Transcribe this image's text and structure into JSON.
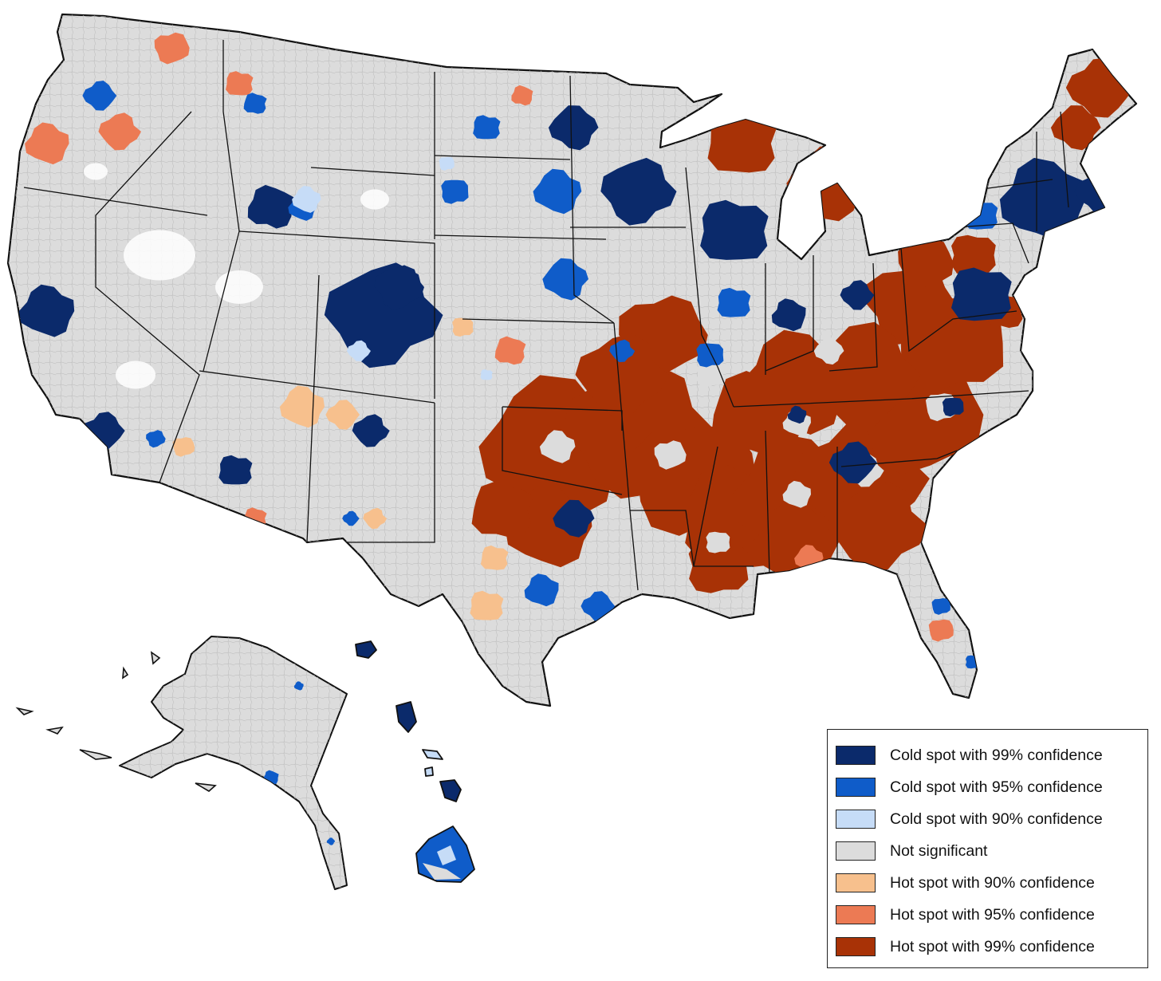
{
  "map": {
    "region": "United States (counties), incl. Alaska and Hawaii",
    "legend": {
      "items": [
        {
          "label": "Cold spot with 99% confidence",
          "color": "#0b2a6b",
          "key": "cold99"
        },
        {
          "label": "Cold spot with 95% confidence",
          "color": "#0f5cc9",
          "key": "cold95"
        },
        {
          "label": "Cold spot with 90% confidence",
          "color": "#c6dcf7",
          "key": "cold90"
        },
        {
          "label": "Not significant",
          "color": "#dcdcdc",
          "key": "ns"
        },
        {
          "label": "Hot spot with 90% confidence",
          "color": "#f7c08d",
          "key": "hot90"
        },
        {
          "label": "Hot spot with 95% confidence",
          "color": "#ec7a54",
          "key": "hot95"
        },
        {
          "label": "Hot spot with 99% confidence",
          "color": "#a83206",
          "key": "hot99"
        }
      ]
    }
  }
}
